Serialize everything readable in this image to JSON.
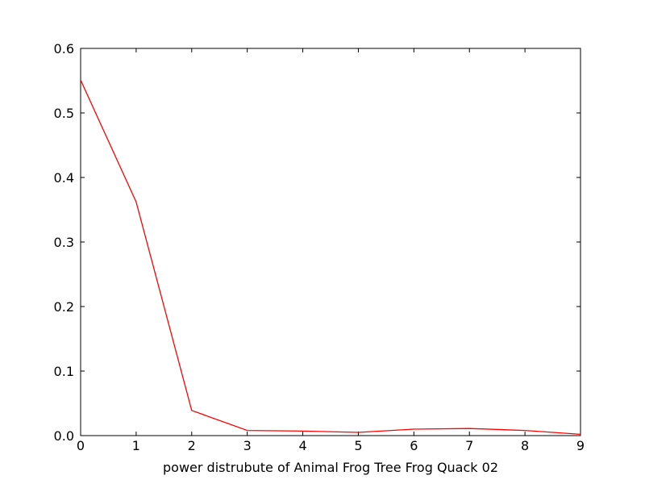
{
  "chart_data": {
    "type": "line",
    "title": "",
    "xlabel": "power distrubute of Animal Frog Tree Frog Quack 02",
    "ylabel": "",
    "xlim": [
      0,
      9
    ],
    "ylim": [
      0.0,
      0.6
    ],
    "x_ticks": [
      "0",
      "1",
      "2",
      "3",
      "4",
      "5",
      "6",
      "7",
      "8",
      "9"
    ],
    "y_ticks": [
      "0.0",
      "0.1",
      "0.2",
      "0.3",
      "0.4",
      "0.5",
      "0.6"
    ],
    "grid": false,
    "series": [
      {
        "color": "#ff0000",
        "x": [
          0,
          1,
          2,
          3,
          4,
          5,
          6,
          7,
          8,
          9
        ],
        "values": [
          0.551,
          0.362,
          0.039,
          0.008,
          0.007,
          0.005,
          0.01,
          0.011,
          0.008,
          0.002
        ]
      }
    ]
  }
}
